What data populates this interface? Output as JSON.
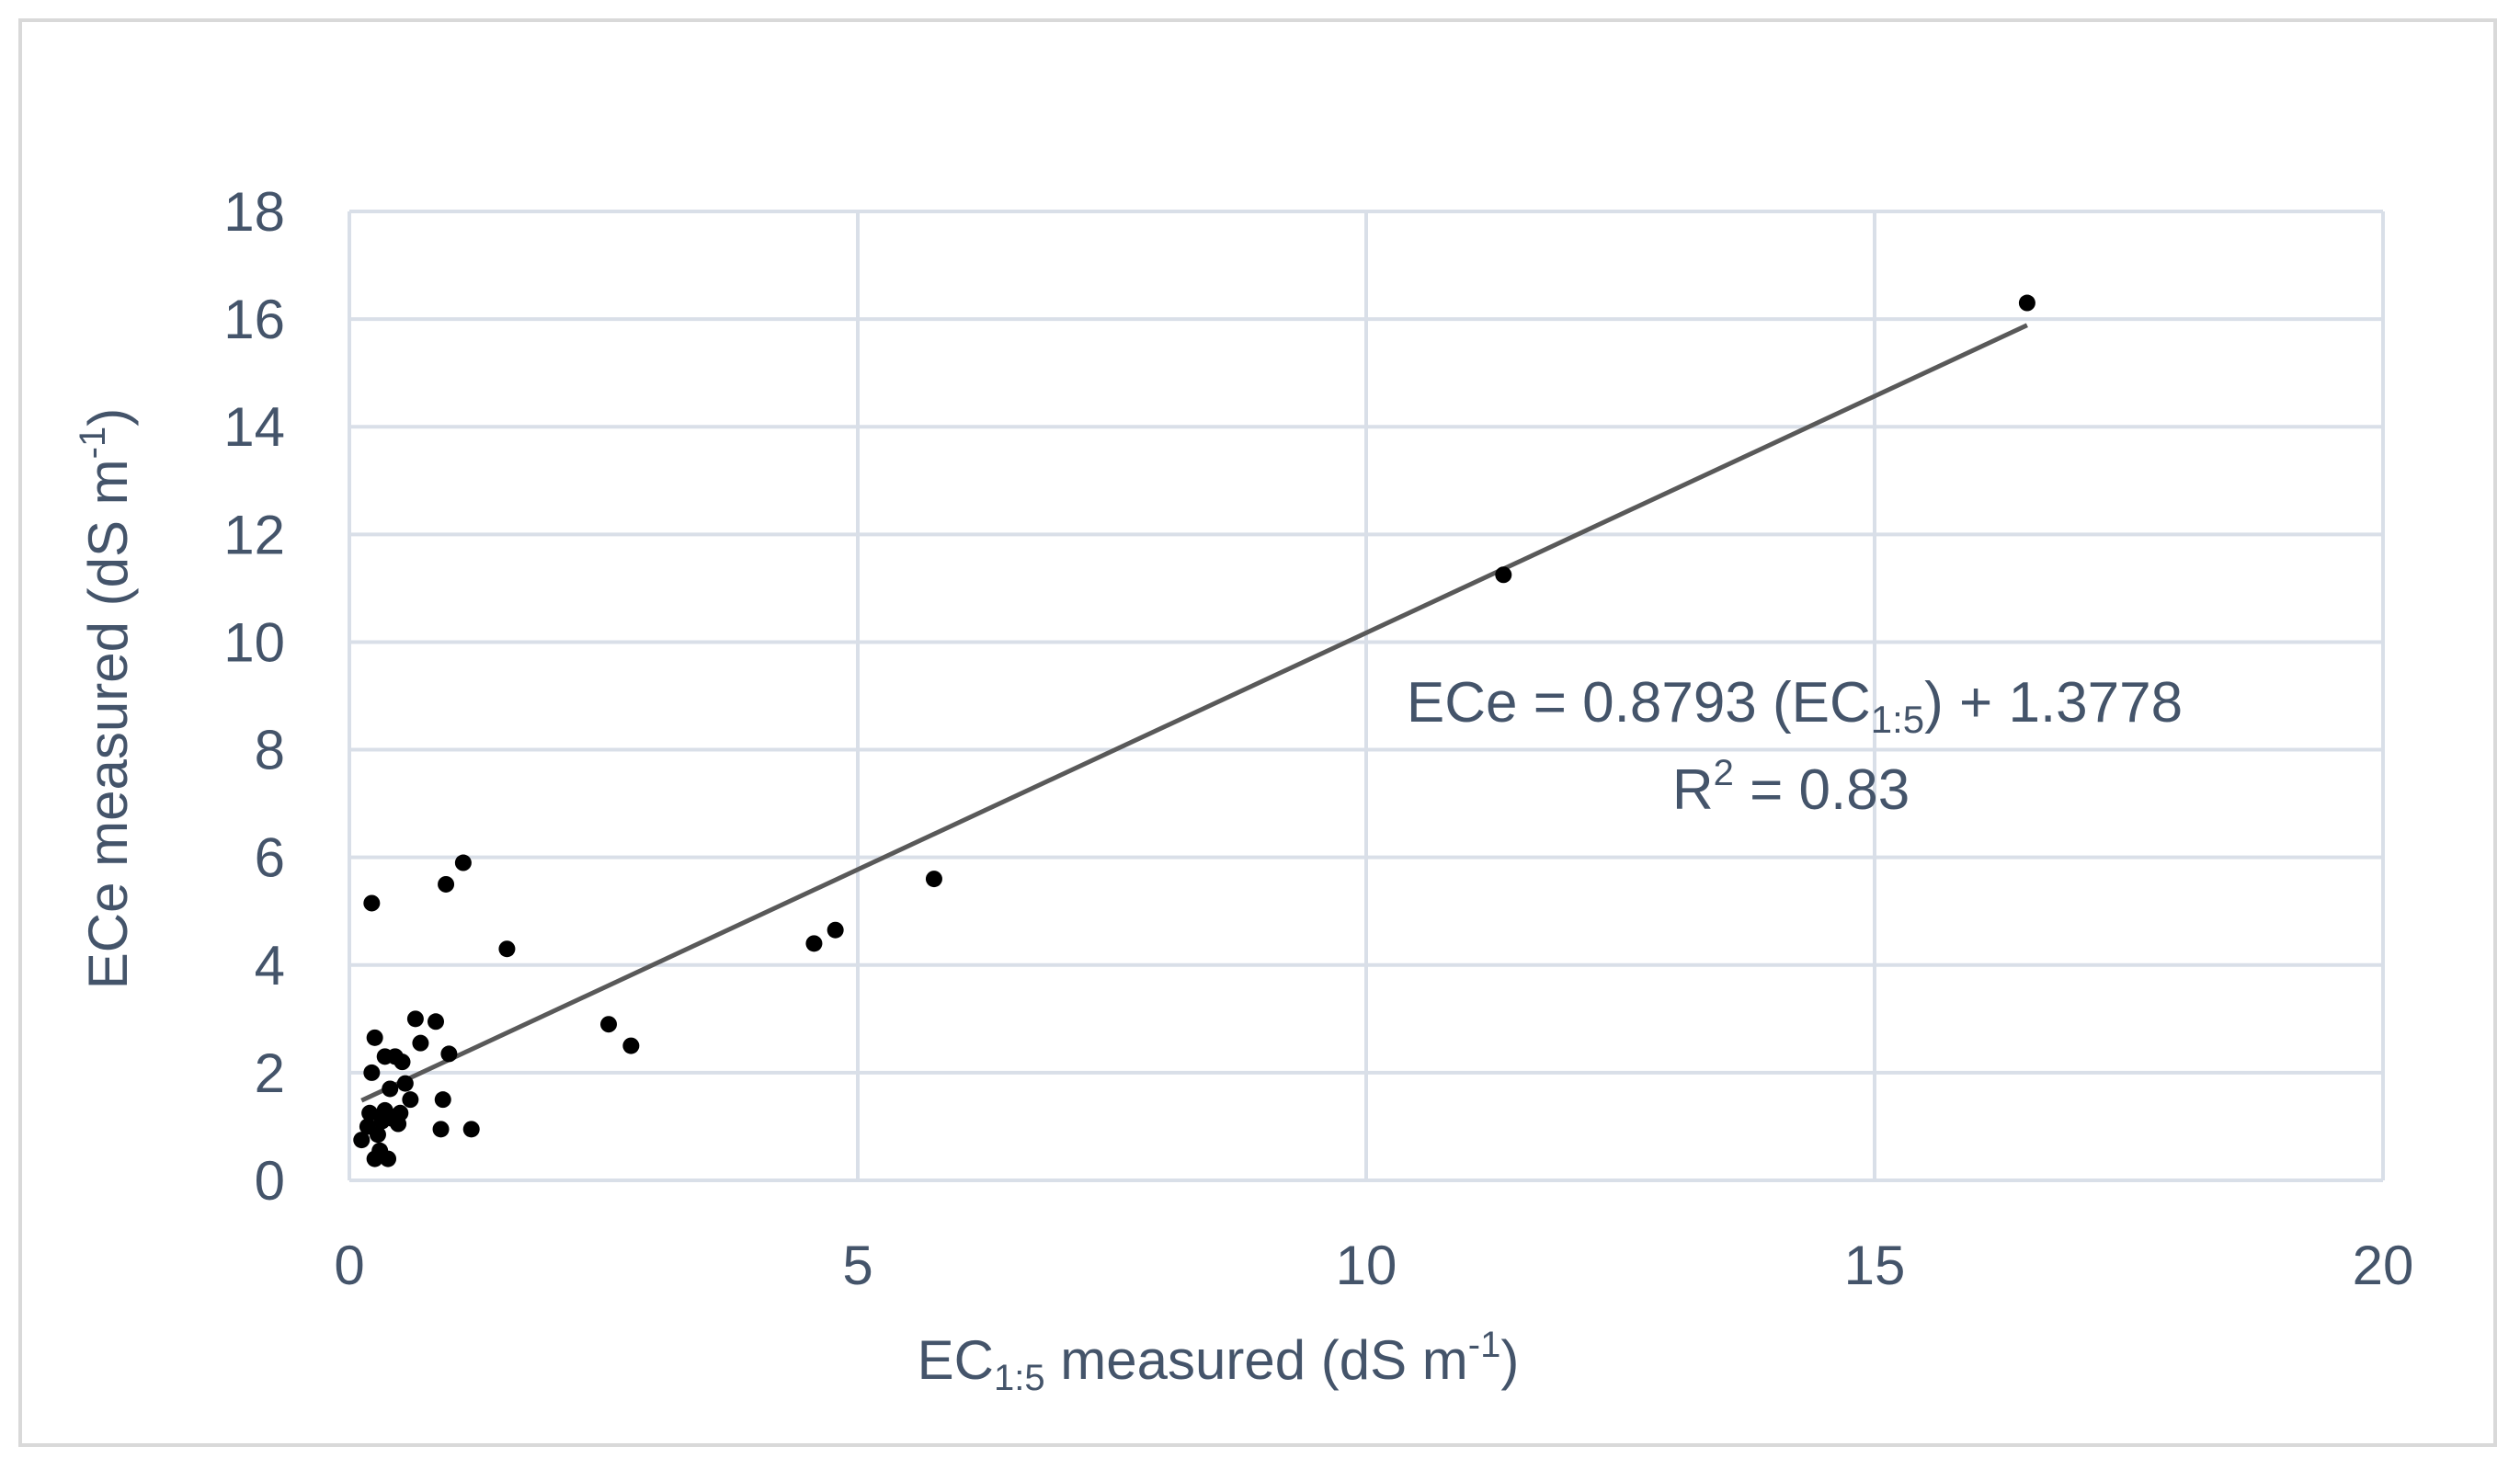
{
  "chart_data": {
    "type": "scatter",
    "xlabel": {
      "prefix": "EC",
      "sub": "1:5",
      "suffix": " measured (dS m",
      "sup": "-1",
      "end": ")"
    },
    "ylabel": {
      "prefix": "ECe measured (dS m",
      "sup": "-1",
      "end": ")"
    },
    "xlim": [
      0,
      20
    ],
    "ylim": [
      0,
      18
    ],
    "x_ticks": [
      0,
      5,
      10,
      15,
      20
    ],
    "y_ticks": [
      0,
      2,
      4,
      6,
      8,
      10,
      12,
      14,
      16,
      18
    ],
    "x_tick_labels": [
      "0",
      "5",
      "10",
      "15",
      "20"
    ],
    "y_tick_labels": [
      "0",
      "2",
      "4",
      "6",
      "8",
      "10",
      "12",
      "14",
      "16",
      "18"
    ],
    "grid": true,
    "point_color": "#000000",
    "trendline_color": "#595959",
    "grid_color": "#d9dfe8",
    "points": [
      {
        "x": 0.12,
        "y": 0.75
      },
      {
        "x": 0.18,
        "y": 1.0
      },
      {
        "x": 0.2,
        "y": 1.25
      },
      {
        "x": 0.22,
        "y": 5.15
      },
      {
        "x": 0.22,
        "y": 2.0
      },
      {
        "x": 0.25,
        "y": 2.65
      },
      {
        "x": 0.25,
        "y": 0.4
      },
      {
        "x": 0.28,
        "y": 0.85
      },
      {
        "x": 0.3,
        "y": 0.55
      },
      {
        "x": 0.32,
        "y": 1.1
      },
      {
        "x": 0.35,
        "y": 1.3
      },
      {
        "x": 0.35,
        "y": 2.3
      },
      {
        "x": 0.38,
        "y": 0.4
      },
      {
        "x": 0.4,
        "y": 1.7
      },
      {
        "x": 0.42,
        "y": 1.15
      },
      {
        "x": 0.45,
        "y": 2.3
      },
      {
        "x": 0.48,
        "y": 1.05
      },
      {
        "x": 0.5,
        "y": 1.25
      },
      {
        "x": 0.52,
        "y": 2.2
      },
      {
        "x": 0.55,
        "y": 1.8
      },
      {
        "x": 0.6,
        "y": 1.5
      },
      {
        "x": 0.65,
        "y": 3.0
      },
      {
        "x": 0.7,
        "y": 2.55
      },
      {
        "x": 0.85,
        "y": 2.95
      },
      {
        "x": 0.9,
        "y": 0.95
      },
      {
        "x": 0.92,
        "y": 1.5
      },
      {
        "x": 0.95,
        "y": 5.5
      },
      {
        "x": 0.98,
        "y": 2.35
      },
      {
        "x": 1.12,
        "y": 5.9
      },
      {
        "x": 1.2,
        "y": 0.95
      },
      {
        "x": 1.55,
        "y": 4.3
      },
      {
        "x": 2.55,
        "y": 2.9
      },
      {
        "x": 2.77,
        "y": 2.5
      },
      {
        "x": 4.57,
        "y": 4.4
      },
      {
        "x": 4.78,
        "y": 4.65
      },
      {
        "x": 5.75,
        "y": 5.6
      },
      {
        "x": 11.35,
        "y": 11.25
      },
      {
        "x": 16.5,
        "y": 16.3
      }
    ],
    "trendline": {
      "slope": 0.8793,
      "intercept": 1.3778,
      "x_start": 0.12,
      "x_end": 16.5
    },
    "annotations": {
      "equation_prefix": "ECe = 0.8793 (EC",
      "equation_sub": "1:5",
      "equation_suffix": ") + 1.3778",
      "r2_prefix": "R",
      "r2_sup": "2",
      "r2_suffix": " = 0.83"
    }
  }
}
